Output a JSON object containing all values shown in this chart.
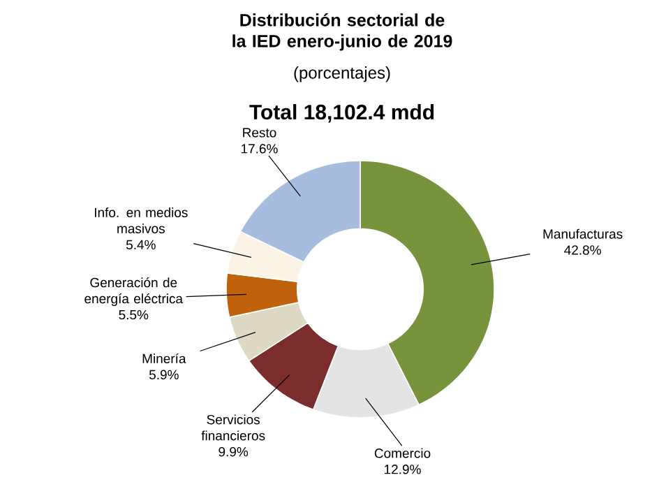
{
  "chart_data": {
    "type": "donut",
    "title": "Distribución sectorial de la IED enero-junio de 2019",
    "subtitle": "(porcentajes)",
    "annotations": [
      "Total 18,102.4 mdd"
    ],
    "categories": [
      "Manufacturas",
      "Comercio",
      "Servicios financieros",
      "Minería",
      "Generación de energía eléctrica",
      "Info. en medios masivos",
      "Resto"
    ],
    "values": [
      42.8,
      12.9,
      9.9,
      5.9,
      5.5,
      5.4,
      17.6
    ],
    "colors": [
      "#77933c",
      "#e4e4e4",
      "#7b2c2c",
      "#ddd9c3",
      "#c0620c",
      "#fbf4e6",
      "#a7bde0"
    ],
    "value_labels": [
      "42.8%",
      "12.9%",
      "9.9%",
      "5.9%",
      "5.5%",
      "5.4%",
      "17.6%"
    ]
  }
}
